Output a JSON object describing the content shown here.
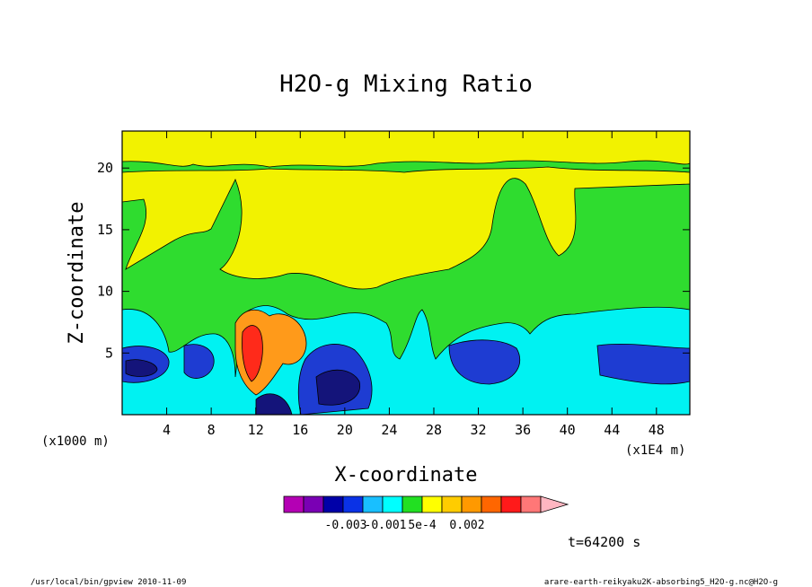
{
  "footer": {
    "left": "/usr/local/bin/gpview   2010-11-09",
    "right": "arare-earth-reikyaku2K-absorbing5_H2O-g.nc@H2O-g"
  },
  "time_label": "t=64200 s",
  "chart_data": {
    "type": "heatmap",
    "title": "H2O-g Mixing Ratio",
    "xlabel": "X-coordinate",
    "ylabel": "Z-coordinate",
    "x_units_left": "(x1000 m)",
    "x_units_right": "(x1E4 m)",
    "xlim": [
      0,
      51
    ],
    "ylim": [
      0,
      23
    ],
    "x_ticks": [
      4,
      8,
      12,
      16,
      20,
      24,
      28,
      32,
      36,
      40,
      44,
      48
    ],
    "y_ticks": [
      5,
      10,
      15,
      20
    ],
    "grid": false,
    "colorbar": {
      "orientation": "horizontal",
      "colors": [
        "#b400b4",
        "#7a00b4",
        "#0000a8",
        "#0a32e6",
        "#19bfff",
        "#00ffff",
        "#22e022",
        "#ffff00",
        "#ffcc00",
        "#ff9900",
        "#ff6600",
        "#ff1a1a",
        "#ff7777",
        "#ffb6c1"
      ],
      "tick_labels": [
        "-0.003",
        "-0.001",
        "5e-4",
        "0.002"
      ]
    },
    "regions": [
      {
        "level": "yellow",
        "color": "#f2f200",
        "note": "upper domain"
      },
      {
        "level": "green",
        "color": "#2fdc2f"
      },
      {
        "level": "cyan",
        "color": "#00f2f2"
      },
      {
        "level": "mid-blue",
        "color": "#1e3cd2"
      },
      {
        "level": "dark-blue",
        "color": "#14147a"
      },
      {
        "level": "orange",
        "color": "#ff9a1a"
      },
      {
        "level": "red",
        "color": "#ff2a1a"
      }
    ]
  }
}
